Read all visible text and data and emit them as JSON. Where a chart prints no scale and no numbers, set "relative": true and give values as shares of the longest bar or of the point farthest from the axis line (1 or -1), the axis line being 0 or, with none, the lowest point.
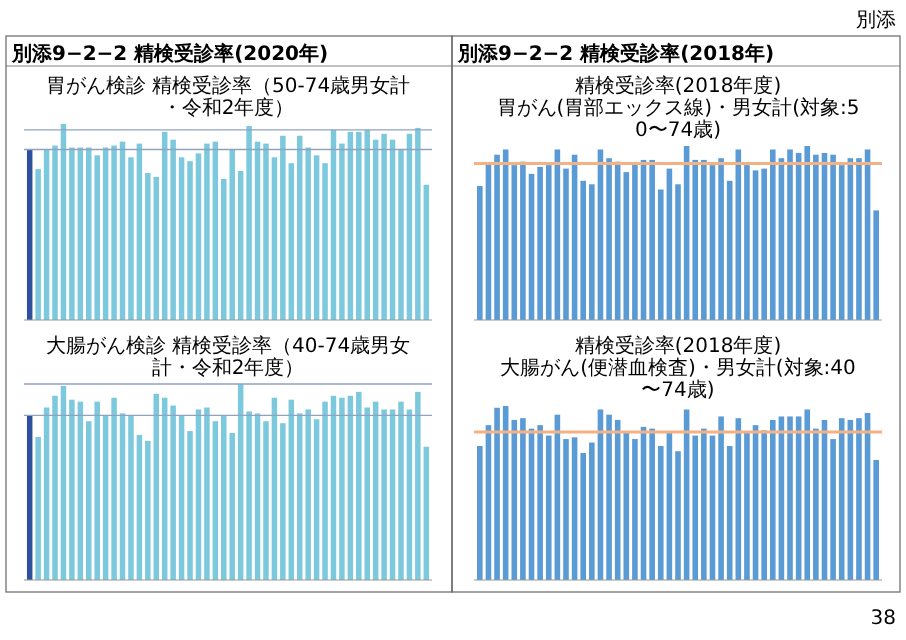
{
  "chart_data": [
    {
      "type": "bar",
      "relative": true,
      "title": "胃がん検診 精検受診率（50-74歳男女計・令和2年度）",
      "annotations": [
        "別添",
        "別添9−2−2 精検受診率(2020年)"
      ],
      "categories": [
        null,
        null,
        null,
        null,
        null,
        null,
        null,
        null,
        null,
        null,
        null,
        null,
        null,
        null,
        null,
        null,
        null,
        null,
        null,
        null,
        null,
        null,
        null,
        null,
        null,
        null,
        null,
        null,
        null,
        null,
        null,
        null,
        null,
        null,
        null,
        null,
        null,
        null,
        null,
        null,
        null,
        null,
        null,
        null,
        null,
        null,
        null,
        null
      ],
      "values": [
        0.87,
        0.77,
        0.87,
        0.89,
        1,
        0.88,
        0.88,
        0.88,
        0.84,
        0.88,
        0.89,
        0.91,
        0.83,
        0.9,
        0.75,
        0.73,
        0.96,
        0.92,
        0.83,
        0.81,
        0.85,
        0.9,
        0.91,
        0.72,
        0.87,
        0.76,
        0.99,
        0.91,
        0.9,
        0.83,
        0.94,
        0.8,
        0.94,
        0.88,
        0.84,
        0.8,
        0.97,
        0.9,
        0.96,
        0.96,
        0.97,
        0.92,
        0.95,
        0.92,
        0.87,
        0.95,
        0.98,
        0.69
      ],
      "colors": [
        "#2f4f9f",
        "#7cc8dc",
        "#7cc8dc",
        "#7cc8dc",
        "#7cc8dc",
        "#7cc8dc",
        "#7cc8dc",
        "#7cc8dc",
        "#7cc8dc",
        "#7cc8dc",
        "#7cc8dc",
        "#7cc8dc",
        "#7cc8dc",
        "#7cc8dc",
        "#7cc8dc",
        "#7cc8dc",
        "#7cc8dc",
        "#7cc8dc",
        "#7cc8dc",
        "#7cc8dc",
        "#7cc8dc",
        "#7cc8dc",
        "#7cc8dc",
        "#7cc8dc",
        "#7cc8dc",
        "#7cc8dc",
        "#7cc8dc",
        "#7cc8dc",
        "#7cc8dc",
        "#7cc8dc",
        "#7cc8dc",
        "#7cc8dc",
        "#7cc8dc",
        "#7cc8dc",
        "#7cc8dc",
        "#7cc8dc",
        "#7cc8dc",
        "#7cc8dc",
        "#7cc8dc",
        "#7cc8dc",
        "#7cc8dc",
        "#7cc8dc",
        "#7cc8dc",
        "#7cc8dc",
        "#7cc8dc",
        "#7cc8dc",
        "#7cc8dc",
        "#7cc8dc"
      ],
      "ref_lines": [
        {
          "axis": "y",
          "value": 0.97,
          "color": "#8fa3c0"
        },
        {
          "axis": "y",
          "value": 0.87,
          "color": "#8fa3c0"
        }
      ]
    },
    {
      "type": "bar",
      "relative": true,
      "title": "大腸がん検診 精検受診率（40-74歳男女計・令和2年度）",
      "categories": [
        null,
        null,
        null,
        null,
        null,
        null,
        null,
        null,
        null,
        null,
        null,
        null,
        null,
        null,
        null,
        null,
        null,
        null,
        null,
        null,
        null,
        null,
        null,
        null,
        null,
        null,
        null,
        null,
        null,
        null,
        null,
        null,
        null,
        null,
        null,
        null,
        null,
        null,
        null,
        null,
        null,
        null,
        null,
        null,
        null,
        null,
        null,
        null
      ],
      "values": [
        0.84,
        0.73,
        0.88,
        0.94,
        0.99,
        0.92,
        0.91,
        0.81,
        0.91,
        0.84,
        0.93,
        0.85,
        0.84,
        0.74,
        0.71,
        0.95,
        0.93,
        0.89,
        0.84,
        0.76,
        0.87,
        0.88,
        0.81,
        0.84,
        0.75,
        1,
        0.86,
        0.85,
        0.81,
        0.93,
        0.8,
        0.92,
        0.85,
        0.87,
        0.82,
        0.91,
        0.94,
        0.93,
        0.94,
        0.96,
        0.88,
        0.91,
        0.87,
        0.87,
        0.91,
        0.87,
        0.96,
        0.68
      ],
      "colors": [
        "#2f4f9f",
        "#7cc8dc",
        "#7cc8dc",
        "#7cc8dc",
        "#7cc8dc",
        "#7cc8dc",
        "#7cc8dc",
        "#7cc8dc",
        "#7cc8dc",
        "#7cc8dc",
        "#7cc8dc",
        "#7cc8dc",
        "#7cc8dc",
        "#7cc8dc",
        "#7cc8dc",
        "#7cc8dc",
        "#7cc8dc",
        "#7cc8dc",
        "#7cc8dc",
        "#7cc8dc",
        "#7cc8dc",
        "#7cc8dc",
        "#7cc8dc",
        "#7cc8dc",
        "#7cc8dc",
        "#7cc8dc",
        "#7cc8dc",
        "#7cc8dc",
        "#7cc8dc",
        "#7cc8dc",
        "#7cc8dc",
        "#7cc8dc",
        "#7cc8dc",
        "#7cc8dc",
        "#7cc8dc",
        "#7cc8dc",
        "#7cc8dc",
        "#7cc8dc",
        "#7cc8dc",
        "#7cc8dc",
        "#7cc8dc",
        "#7cc8dc",
        "#7cc8dc",
        "#7cc8dc",
        "#7cc8dc",
        "#7cc8dc",
        "#7cc8dc",
        "#7cc8dc"
      ],
      "ref_lines": [
        {
          "axis": "y",
          "value": 1,
          "color": "#8fa3c0"
        },
        {
          "axis": "y",
          "value": 0.84,
          "color": "#8fa3c0"
        }
      ]
    },
    {
      "type": "bar",
      "relative": true,
      "title": "精検受診率(2018年度)",
      "subtitle": "胃がん(胃部エックス線)・男女計(対象:50〜74歳)",
      "annotations": [
        "別添9−2−2 精検受診率(2018年)",
        "38"
      ],
      "categories": [
        null,
        null,
        null,
        null,
        null,
        null,
        null,
        null,
        null,
        null,
        null,
        null,
        null,
        null,
        null,
        null,
        null,
        null,
        null,
        null,
        null,
        null,
        null,
        null,
        null,
        null,
        null,
        null,
        null,
        null,
        null,
        null,
        null,
        null,
        null,
        null,
        null,
        null,
        null,
        null,
        null,
        null,
        null,
        null,
        null,
        null,
        null
      ],
      "values": [
        0.77,
        0.9,
        0.95,
        0.98,
        0.89,
        0.91,
        0.84,
        0.88,
        0.89,
        0.98,
        0.87,
        0.95,
        0.8,
        0.78,
        0.98,
        0.93,
        0.91,
        0.85,
        0.9,
        0.92,
        0.92,
        0.75,
        0.87,
        0.78,
        1,
        0.92,
        0.92,
        0.89,
        0.93,
        0.8,
        0.98,
        0.89,
        0.86,
        0.87,
        0.98,
        0.93,
        0.98,
        0.96,
        1,
        0.95,
        0.96,
        0.95,
        0.89,
        0.93,
        0.93,
        0.98,
        0.63
      ],
      "color": "#5b9bd5",
      "ref_lines": [
        {
          "axis": "y",
          "value": 0.9,
          "color": "#f4b183"
        }
      ]
    },
    {
      "type": "bar",
      "relative": true,
      "title": "精検受診率(2018年度)",
      "subtitle": "大腸がん(便潜血検査)・男女計(対象:40〜74歳)",
      "categories": [
        null,
        null,
        null,
        null,
        null,
        null,
        null,
        null,
        null,
        null,
        null,
        null,
        null,
        null,
        null,
        null,
        null,
        null,
        null,
        null,
        null,
        null,
        null,
        null,
        null,
        null,
        null,
        null,
        null,
        null,
        null,
        null,
        null,
        null,
        null,
        null,
        null,
        null,
        null,
        null,
        null,
        null,
        null,
        null,
        null,
        null,
        null
      ],
      "values": [
        0.77,
        0.89,
        0.99,
        1,
        0.92,
        0.93,
        0.87,
        0.89,
        0.83,
        0.95,
        0.81,
        0.82,
        0.73,
        0.79,
        0.98,
        0.95,
        0.92,
        0.85,
        0.81,
        0.88,
        0.87,
        0.77,
        0.85,
        0.74,
        0.98,
        0.83,
        0.87,
        0.83,
        0.94,
        0.77,
        0.93,
        0.85,
        0.89,
        0.86,
        0.92,
        0.94,
        0.94,
        0.94,
        0.98,
        0.87,
        0.92,
        0.81,
        0.93,
        0.92,
        0.93,
        0.96,
        0.69
      ],
      "color": "#5b9bd5",
      "ref_lines": [
        {
          "axis": "y",
          "value": 0.85,
          "color": "#f4b183"
        }
      ]
    }
  ]
}
